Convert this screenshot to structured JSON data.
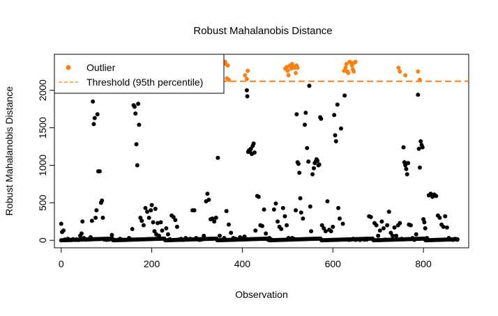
{
  "chart_data": {
    "type": "scatter",
    "title": "Robust Mahalanobis Distance",
    "xlabel": "Observation",
    "ylabel": "Robust Mahalanobis Distance",
    "xlim": [
      -15,
      900
    ],
    "ylim": [
      -100,
      2480
    ],
    "xticks": [
      0,
      200,
      400,
      600,
      800
    ],
    "yticks": [
      0,
      500,
      1000,
      1500,
      2000
    ],
    "threshold": 2120,
    "legend": {
      "position": "top-left",
      "entries": [
        {
          "label": "Outlier",
          "kind": "point",
          "color": "#ff7f0e"
        },
        {
          "label": "Threshold (95th percentile)",
          "kind": "dashed-line",
          "color": "#ff7f0e"
        }
      ]
    },
    "colors": {
      "inlier": "#000000",
      "outlier": "#ff7f0e"
    },
    "series": [
      {
        "role": "inlier",
        "points": [
          [
            0,
            220
          ],
          [
            2,
            110
          ],
          [
            5,
            130
          ],
          [
            8,
            10
          ],
          [
            12,
            5
          ],
          [
            15,
            20
          ],
          [
            18,
            8
          ],
          [
            22,
            3
          ],
          [
            26,
            15
          ],
          [
            30,
            6
          ],
          [
            34,
            12
          ],
          [
            38,
            4
          ],
          [
            42,
            60
          ],
          [
            45,
            90
          ],
          [
            47,
            250
          ],
          [
            50,
            30
          ],
          [
            55,
            8
          ],
          [
            60,
            15
          ],
          [
            65,
            40
          ],
          [
            68,
            260
          ],
          [
            70,
            1850
          ],
          [
            72,
            1550
          ],
          [
            74,
            1630
          ],
          [
            76,
            300
          ],
          [
            78,
            400
          ],
          [
            80,
            1680
          ],
          [
            82,
            920
          ],
          [
            85,
            920
          ],
          [
            88,
            500
          ],
          [
            90,
            530
          ],
          [
            92,
            300
          ],
          [
            95,
            10
          ],
          [
            100,
            5
          ],
          [
            105,
            8
          ],
          [
            110,
            15
          ],
          [
            112,
            70
          ],
          [
            118,
            5
          ],
          [
            125,
            6
          ],
          [
            130,
            20
          ],
          [
            135,
            8
          ],
          [
            140,
            3
          ],
          [
            145,
            6
          ],
          [
            150,
            30
          ],
          [
            154,
            10
          ],
          [
            157,
            150
          ],
          [
            160,
            1800
          ],
          [
            162,
            1780
          ],
          [
            164,
            1690
          ],
          [
            166,
            1280
          ],
          [
            168,
            1000
          ],
          [
            170,
            1820
          ],
          [
            172,
            1540
          ],
          [
            175,
            300
          ],
          [
            178,
            260
          ],
          [
            182,
            200
          ],
          [
            186,
            430
          ],
          [
            190,
            380
          ],
          [
            194,
            300
          ],
          [
            198,
            400
          ],
          [
            200,
            470
          ],
          [
            203,
            240
          ],
          [
            206,
            120
          ],
          [
            208,
            420
          ],
          [
            210,
            80
          ],
          [
            213,
            230
          ],
          [
            216,
            60
          ],
          [
            220,
            240
          ],
          [
            223,
            130
          ],
          [
            228,
            20
          ],
          [
            232,
            160
          ],
          [
            236,
            80
          ],
          [
            240,
            15
          ],
          [
            244,
            330
          ],
          [
            248,
            310
          ],
          [
            252,
            270
          ],
          [
            256,
            180
          ],
          [
            260,
            10
          ],
          [
            265,
            20
          ],
          [
            270,
            5
          ],
          [
            275,
            30
          ],
          [
            280,
            8
          ],
          [
            285,
            20
          ],
          [
            290,
            400
          ],
          [
            294,
            400
          ],
          [
            298,
            30
          ],
          [
            302,
            10
          ],
          [
            306,
            5
          ],
          [
            310,
            10
          ],
          [
            315,
            60
          ],
          [
            320,
            520
          ],
          [
            323,
            620
          ],
          [
            326,
            540
          ],
          [
            330,
            280
          ],
          [
            334,
            290
          ],
          [
            338,
            250
          ],
          [
            342,
            300
          ],
          [
            346,
            1100
          ],
          [
            350,
            60
          ],
          [
            355,
            8
          ],
          [
            360,
            30
          ],
          [
            365,
            390
          ],
          [
            370,
            210
          ],
          [
            375,
            100
          ],
          [
            380,
            30
          ],
          [
            385,
            20
          ],
          [
            390,
            10
          ],
          [
            395,
            40
          ],
          [
            400,
            25
          ],
          [
            405,
            50
          ],
          [
            410,
            2000
          ],
          [
            411,
            1920
          ],
          [
            413,
            1180
          ],
          [
            415,
            1200
          ],
          [
            417,
            1180
          ],
          [
            419,
            1220
          ],
          [
            421,
            1150
          ],
          [
            423,
            1260
          ],
          [
            425,
            1290
          ],
          [
            427,
            1170
          ],
          [
            429,
            130
          ],
          [
            433,
            590
          ],
          [
            436,
            580
          ],
          [
            440,
            200
          ],
          [
            444,
            190
          ],
          [
            448,
            410
          ],
          [
            452,
            90
          ],
          [
            456,
            10
          ],
          [
            460,
            30
          ],
          [
            465,
            8
          ],
          [
            470,
            410
          ],
          [
            474,
            490
          ],
          [
            478,
            250
          ],
          [
            482,
            180
          ],
          [
            486,
            150
          ],
          [
            490,
            430
          ],
          [
            494,
            320
          ],
          [
            498,
            200
          ],
          [
            502,
            30
          ],
          [
            506,
            10
          ],
          [
            510,
            30
          ],
          [
            514,
            20
          ],
          [
            518,
            400
          ],
          [
            520,
            1680
          ],
          [
            522,
            1040
          ],
          [
            524,
            1020
          ],
          [
            526,
            900
          ],
          [
            528,
            560
          ],
          [
            530,
            370
          ],
          [
            534,
            290
          ],
          [
            538,
            1540
          ],
          [
            540,
            1700
          ],
          [
            543,
            1230
          ],
          [
            546,
            1050
          ],
          [
            548,
            2060
          ],
          [
            550,
            450
          ],
          [
            552,
            120
          ],
          [
            555,
            880
          ],
          [
            558,
            960
          ],
          [
            560,
            1030
          ],
          [
            562,
            1050
          ],
          [
            564,
            1080
          ],
          [
            566,
            1060
          ],
          [
            568,
            1000
          ],
          [
            570,
            1010
          ],
          [
            572,
            1640
          ],
          [
            574,
            1620
          ],
          [
            576,
            200
          ],
          [
            580,
            160
          ],
          [
            584,
            120
          ],
          [
            588,
            520
          ],
          [
            592,
            140
          ],
          [
            596,
            120
          ],
          [
            600,
            180
          ],
          [
            603,
            1670
          ],
          [
            605,
            1400
          ],
          [
            607,
            1320
          ],
          [
            610,
            1810
          ],
          [
            612,
            430
          ],
          [
            615,
            290
          ],
          [
            618,
            1490
          ],
          [
            622,
            220
          ],
          [
            626,
            1930
          ],
          [
            630,
            10
          ],
          [
            635,
            5
          ],
          [
            640,
            8
          ],
          [
            645,
            20
          ],
          [
            650,
            6
          ],
          [
            655,
            12
          ],
          [
            660,
            4
          ],
          [
            665,
            15
          ],
          [
            670,
            8
          ],
          [
            675,
            10
          ],
          [
            680,
            320
          ],
          [
            684,
            310
          ],
          [
            688,
            20
          ],
          [
            692,
            230
          ],
          [
            696,
            200
          ],
          [
            700,
            60
          ],
          [
            704,
            130
          ],
          [
            708,
            250
          ],
          [
            712,
            160
          ],
          [
            716,
            10
          ],
          [
            720,
            200
          ],
          [
            724,
            380
          ],
          [
            728,
            100
          ],
          [
            732,
            60
          ],
          [
            736,
            170
          ],
          [
            740,
            60
          ],
          [
            744,
            200
          ],
          [
            748,
            230
          ],
          [
            752,
            20
          ],
          [
            756,
            1240
          ],
          [
            758,
            1040
          ],
          [
            760,
            1000
          ],
          [
            762,
            950
          ],
          [
            764,
            880
          ],
          [
            766,
            1030
          ],
          [
            768,
            210
          ],
          [
            772,
            200
          ],
          [
            776,
            30
          ],
          [
            780,
            5
          ],
          [
            784,
            80
          ],
          [
            788,
            1940
          ],
          [
            790,
            1220
          ],
          [
            792,
            970
          ],
          [
            794,
            1320
          ],
          [
            796,
            1270
          ],
          [
            798,
            1240
          ],
          [
            800,
            280
          ],
          [
            802,
            240
          ],
          [
            804,
            160
          ],
          [
            808,
            30
          ],
          [
            812,
            600
          ],
          [
            816,
            620
          ],
          [
            820,
            580
          ],
          [
            824,
            610
          ],
          [
            828,
            590
          ],
          [
            832,
            330
          ],
          [
            836,
            300
          ],
          [
            840,
            210
          ],
          [
            844,
            180
          ],
          [
            848,
            320
          ],
          [
            852,
            170
          ],
          [
            856,
            30
          ],
          [
            860,
            10
          ],
          [
            865,
            5
          ],
          [
            870,
            20
          ],
          [
            875,
            8
          ]
        ]
      },
      {
        "role": "outlier",
        "points": [
          [
            362,
            2380
          ],
          [
            364,
            2350
          ],
          [
            366,
            2160
          ],
          [
            368,
            2330
          ],
          [
            370,
            2140
          ],
          [
            406,
            2200
          ],
          [
            410,
            2150
          ],
          [
            412,
            2260
          ],
          [
            495,
            2290
          ],
          [
            498,
            2310
          ],
          [
            500,
            2260
          ],
          [
            502,
            2200
          ],
          [
            505,
            2330
          ],
          [
            508,
            2290
          ],
          [
            510,
            2350
          ],
          [
            512,
            2320
          ],
          [
            515,
            2300
          ],
          [
            518,
            2230
          ],
          [
            520,
            2330
          ],
          [
            522,
            2300
          ],
          [
            625,
            2260
          ],
          [
            628,
            2300
          ],
          [
            630,
            2350
          ],
          [
            632,
            2250
          ],
          [
            634,
            2230
          ],
          [
            637,
            2380
          ],
          [
            640,
            2370
          ],
          [
            642,
            2330
          ],
          [
            644,
            2280
          ],
          [
            646,
            2250
          ],
          [
            648,
            2370
          ],
          [
            650,
            2380
          ],
          [
            745,
            2300
          ],
          [
            748,
            2250
          ],
          [
            760,
            2200
          ],
          [
            788,
            2250
          ],
          [
            792,
            2140
          ]
        ]
      }
    ]
  }
}
